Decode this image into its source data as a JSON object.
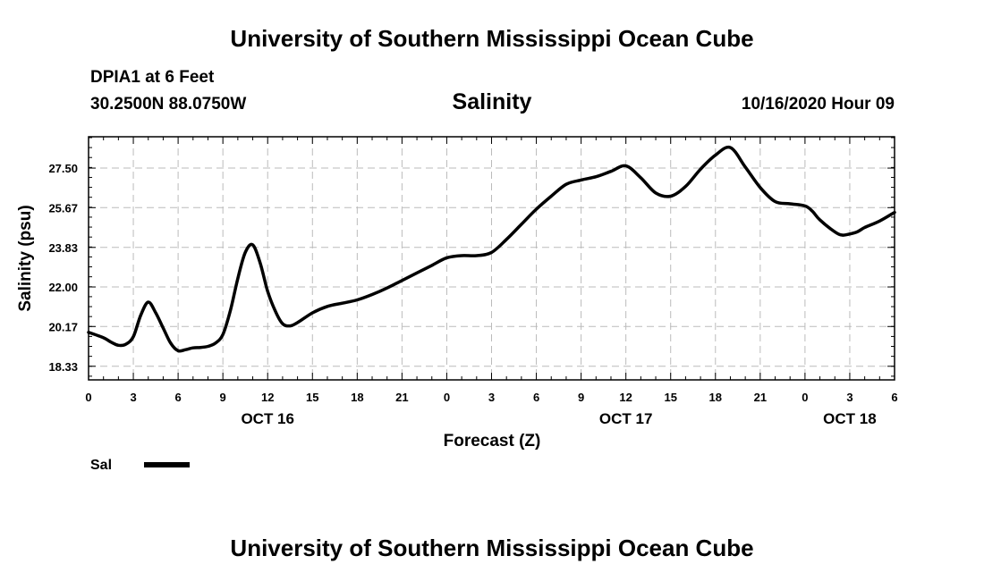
{
  "header": {
    "top_title": "University of Southern Mississippi Ocean Cube",
    "station": "DPIA1 at 6 Feet",
    "coords": "30.2500N 88.0750W",
    "chart_title": "Salinity",
    "run_time": "10/16/2020 Hour 09",
    "bottom_title": "University of Southern Mississippi Ocean Cube"
  },
  "colors": {
    "line": "#000000",
    "grid": "#bbbbbb",
    "background": "#ffffff"
  },
  "chart_data": {
    "type": "line",
    "title": "Salinity",
    "xlabel": "Forecast (Z)",
    "ylabel": "Salinity (psu)",
    "xlim": [
      0,
      54
    ],
    "ylim": [
      17.7,
      28.95
    ],
    "yticks": [
      18.33,
      20.17,
      22.0,
      23.83,
      25.67,
      27.5
    ],
    "ytick_labels": [
      "18.33",
      "20.17",
      "22.00",
      "23.83",
      "25.67",
      "27.50"
    ],
    "xtick_hours": [
      0,
      3,
      6,
      9,
      12,
      15,
      18,
      21,
      24,
      27,
      30,
      33,
      36,
      39,
      42,
      45,
      48,
      51,
      54
    ],
    "xtick_labels": [
      "0",
      "3",
      "6",
      "9",
      "12",
      "15",
      "18",
      "21",
      "0",
      "3",
      "6",
      "9",
      "12",
      "15",
      "18",
      "21",
      "0",
      "3",
      "6"
    ],
    "date_labels": [
      {
        "hour": 12,
        "label": "OCT 16"
      },
      {
        "hour": 36,
        "label": "OCT 17"
      },
      {
        "hour": 51,
        "label": "OCT 18"
      }
    ],
    "grid": true,
    "legend": {
      "position": "bottom-left",
      "label": "Sal"
    },
    "series": [
      {
        "name": "Sal",
        "x": [
          0,
          1,
          1.5,
          2,
          2.5,
          3,
          3.5,
          4,
          4.5,
          5,
          5.5,
          6,
          6.5,
          7,
          7.5,
          8,
          8.5,
          9,
          9.5,
          10,
          10.5,
          11,
          11.5,
          12,
          12.5,
          13,
          13.5,
          14,
          15,
          16,
          17,
          18,
          19,
          20,
          21,
          22,
          23,
          24,
          25,
          26,
          27,
          28,
          29,
          30,
          31,
          32,
          33,
          34,
          35,
          36,
          37,
          38,
          39,
          40,
          41,
          42,
          43,
          44,
          45,
          46,
          47,
          48,
          48.5,
          49,
          50,
          50.5,
          51,
          51.5,
          52,
          53,
          54
        ],
        "values": [
          19.9,
          19.65,
          19.45,
          19.3,
          19.35,
          19.7,
          20.7,
          21.3,
          20.8,
          20.1,
          19.4,
          19.05,
          19.1,
          19.18,
          19.2,
          19.25,
          19.4,
          19.8,
          20.9,
          22.4,
          23.6,
          23.95,
          23.1,
          21.8,
          20.9,
          20.3,
          20.2,
          20.35,
          20.8,
          21.1,
          21.25,
          21.4,
          21.65,
          21.95,
          22.3,
          22.65,
          23.0,
          23.35,
          23.45,
          23.45,
          23.6,
          24.2,
          24.9,
          25.6,
          26.2,
          26.75,
          26.95,
          27.1,
          27.35,
          27.6,
          27.05,
          26.35,
          26.2,
          26.65,
          27.45,
          28.1,
          28.45,
          27.55,
          26.6,
          25.95,
          25.85,
          25.75,
          25.5,
          25.1,
          24.55,
          24.4,
          24.45,
          24.55,
          24.75,
          25.05,
          25.45
        ]
      }
    ]
  }
}
